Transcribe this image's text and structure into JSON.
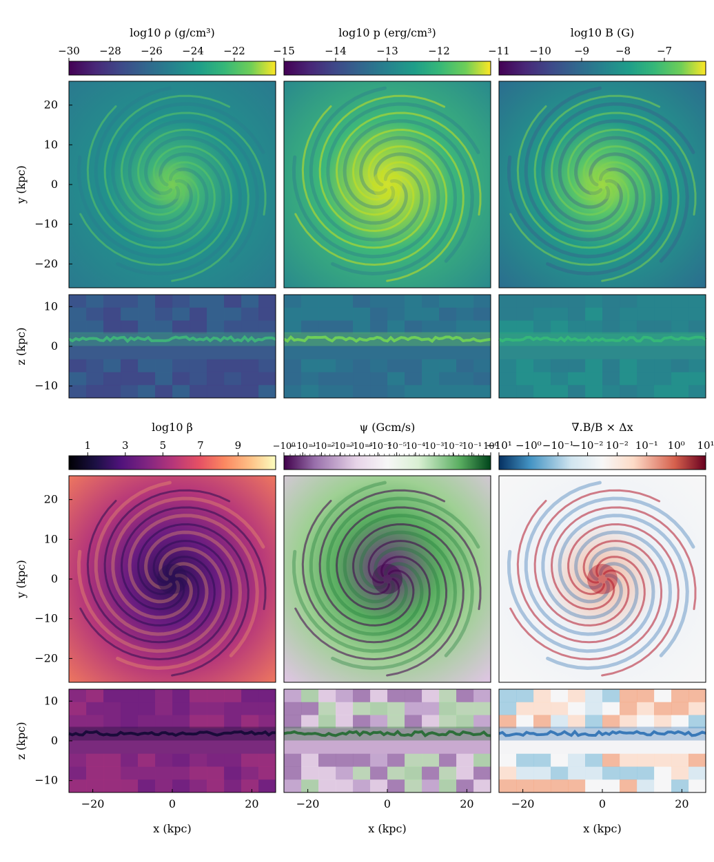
{
  "chart_data": {
    "type": "heatmap",
    "description_grid": "2 row-groups x 3 columns of simulation maps; each column has a face-on (x-y) and edge-on (x-z) slice",
    "colorbars": [
      {
        "title": "log10 ρ (g/cm³)",
        "ticks": [
          "−30",
          "−28",
          "−26",
          "−24",
          "−22"
        ],
        "range": [
          -30,
          -20
        ],
        "colormap": "viridis"
      },
      {
        "title": "log10 p (erg/cm³)",
        "ticks": [
          "−15",
          "−14",
          "−13",
          "−12"
        ],
        "range": [
          -15,
          -11
        ],
        "colormap": "viridis"
      },
      {
        "title": "log10 B (G)",
        "ticks": [
          "−11",
          "−10",
          "−9",
          "−8",
          "−7"
        ],
        "range": [
          -11,
          -6
        ],
        "colormap": "viridis"
      },
      {
        "title": "log10 β",
        "ticks": [
          "1",
          "3",
          "5",
          "7",
          "9"
        ],
        "range": [
          0,
          11
        ],
        "colormap": "magma"
      },
      {
        "title": "ψ (Gcm/s)",
        "ticks": [
          "−10⁰",
          "−10⁻¹",
          "−10⁻²",
          "−10⁻³",
          "−10⁻⁴",
          "−10⁻⁵",
          "10⁻⁵",
          "10⁻⁴",
          "10⁻³",
          "10⁻²",
          "10⁻¹",
          "10⁰"
        ],
        "scale": "symlog",
        "colormap": "PRGn"
      },
      {
        "title": "∇.B/B × Δx",
        "ticks": [
          "−10¹",
          "−10⁰",
          "−10⁻¹",
          "−10⁻²",
          "10⁻²",
          "10⁻¹",
          "10⁰",
          "10¹"
        ],
        "scale": "symlog",
        "colormap": "RdBu_r"
      }
    ],
    "axes": {
      "x_label": "x (kpc)",
      "y_label": "y (kpc)",
      "z_label": "z (kpc)",
      "x_ticks": [
        "−20",
        "0",
        "20"
      ],
      "y_ticks": [
        "20",
        "10",
        "0",
        "−10",
        "−20"
      ],
      "z_ticks": [
        "10",
        "0",
        "−10"
      ],
      "x_range": [
        -26,
        26
      ],
      "y_range": [
        -26,
        26
      ],
      "z_range": [
        -13,
        13
      ]
    }
  }
}
